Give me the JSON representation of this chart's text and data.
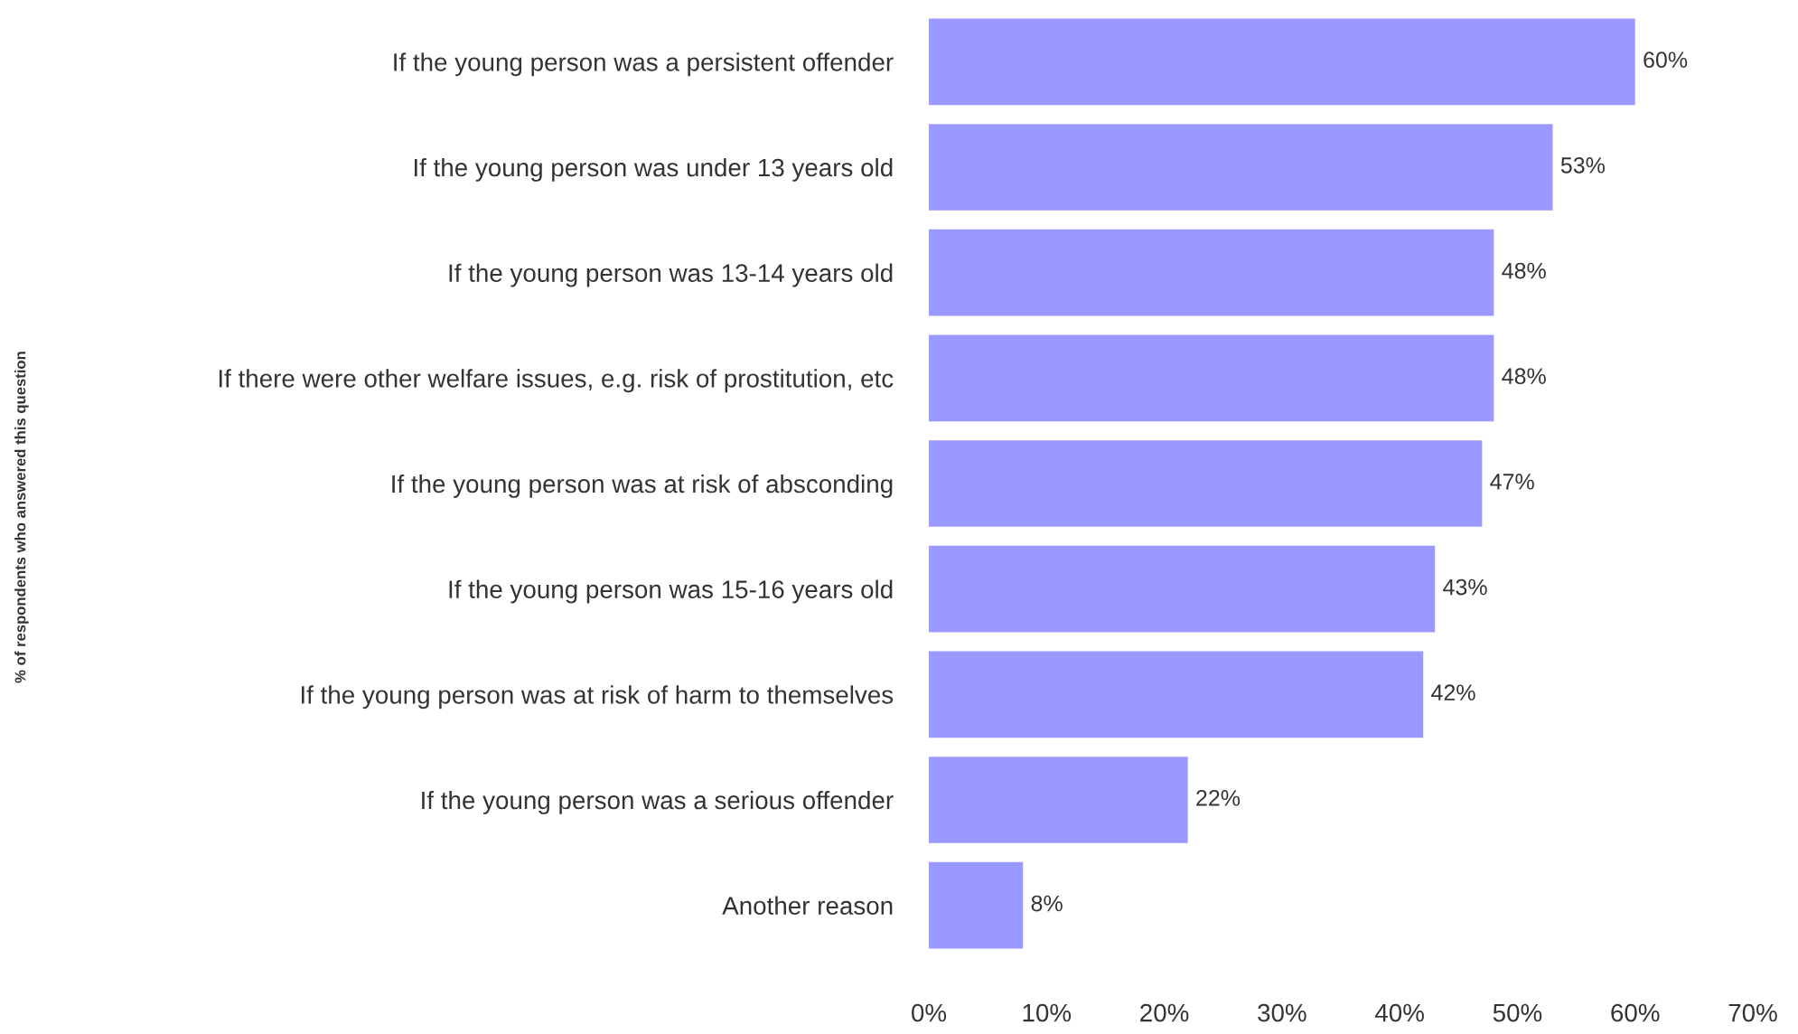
{
  "chart_data": {
    "type": "bar",
    "orientation": "horizontal",
    "annotations": [
      "% of respondents who answered this question"
    ],
    "categories": [
      "If the young person was a persistent offender",
      "If the young person was under 13 years old",
      "If the young person was 13-14 years old",
      "If there were other welfare issues, e.g. risk of prostitution, etc",
      "If the young person was at risk of absconding",
      "If the young person was 15-16 years old",
      "If the young person was at risk of harm to themselves",
      "If the young person was a serious offender",
      "Another reason"
    ],
    "values": [
      60,
      53,
      48,
      48,
      47,
      43,
      42,
      22,
      8
    ],
    "value_labels": [
      "60%",
      "53%",
      "48%",
      "48%",
      "47%",
      "43%",
      "42%",
      "22%",
      "8%"
    ],
    "color": "#9999ff",
    "xlim": [
      0,
      70
    ],
    "xticks": [
      {
        "value": 0,
        "label": "0%"
      },
      {
        "value": 10,
        "label": "10%"
      },
      {
        "value": 20,
        "label": "20%"
      },
      {
        "value": 30,
        "label": "30%"
      },
      {
        "value": 40,
        "label": "40%"
      },
      {
        "value": 50,
        "label": "50%"
      },
      {
        "value": 60,
        "label": "60%"
      },
      {
        "value": 70,
        "label": "70%"
      }
    ],
    "grid": false,
    "legend": false
  }
}
